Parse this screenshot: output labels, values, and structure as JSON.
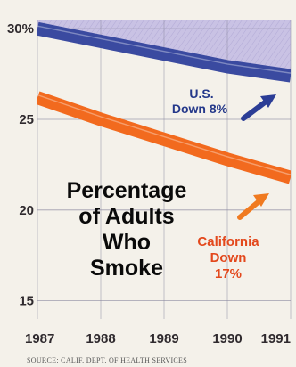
{
  "chart_data": {
    "type": "line",
    "title_lines": [
      "Percentage",
      "of Adults",
      "Who",
      "Smoke"
    ],
    "x": [
      1987,
      1988,
      1989,
      1990,
      1991
    ],
    "x_tick_labels": [
      "1987",
      "1988",
      "1989",
      "1990",
      "1991"
    ],
    "y_tick_labels": [
      "30%",
      "25",
      "20",
      "15"
    ],
    "ylim": [
      14,
      30.5
    ],
    "series": [
      {
        "key": "us",
        "values": [
          30.0,
          29.3,
          28.6,
          27.9,
          27.4
        ],
        "color": "#3a4aa0",
        "label_lines": [
          "U.S.",
          "Down 8%"
        ]
      },
      {
        "key": "california",
        "values": [
          26.2,
          25.0,
          23.9,
          22.8,
          21.8
        ],
        "color": "#f26a1e",
        "label_lines": [
          "California",
          "Down",
          "17%"
        ]
      }
    ],
    "source": "SOURCE: CALIF. DEPT. OF HEALTH SERVICES",
    "colors": {
      "shade": "#c9c2e4",
      "grid": "#8b88a0",
      "us_arrow": "#2b3d96",
      "ca_arrow": "#f07a20"
    }
  }
}
